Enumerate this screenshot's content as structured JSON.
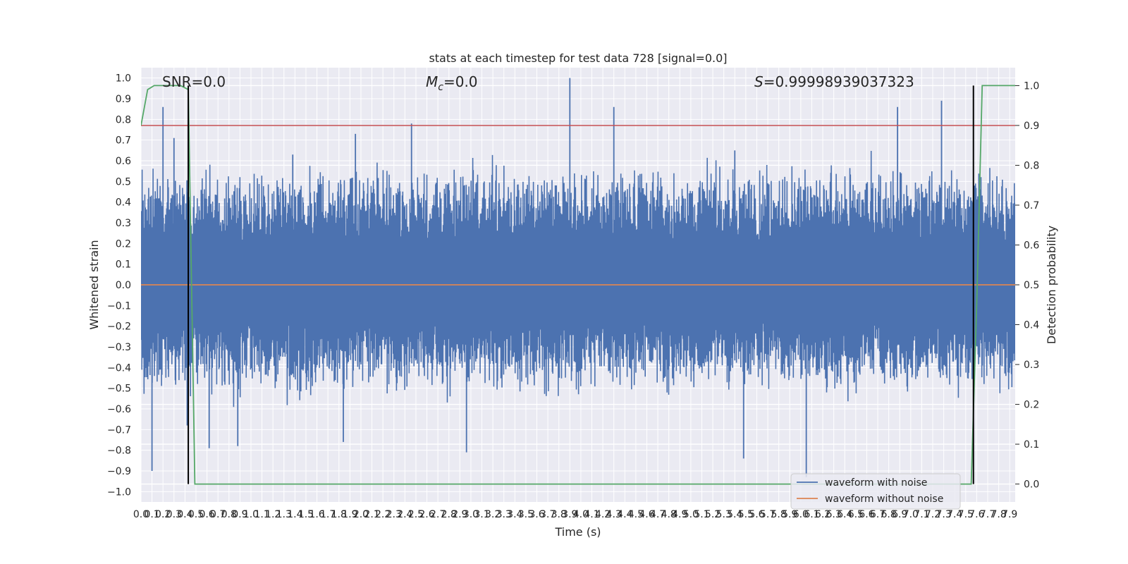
{
  "chart_data": {
    "type": "line",
    "title": "stats at each timestep for test data 728 [signal=0.0]",
    "xlabel": "Time (s)",
    "ylabel": "Whitened strain",
    "y2label": "Detection probability",
    "xlim": [
      0.0,
      7.95
    ],
    "ylim": [
      -1.05,
      1.05
    ],
    "y2lim": [
      -0.045,
      1.045
    ],
    "x_ticks": [
      0.0,
      0.1,
      0.2,
      0.3,
      0.4,
      0.5,
      0.6,
      0.7,
      0.8,
      0.9,
      1.0,
      1.1,
      1.2,
      1.3,
      1.4,
      1.5,
      1.6,
      1.7,
      1.8,
      1.9,
      2.0,
      2.1,
      2.2,
      2.3,
      2.4,
      2.5,
      2.6,
      2.7,
      2.8,
      2.9,
      3.0,
      3.1,
      3.2,
      3.3,
      3.4,
      3.5,
      3.6,
      3.7,
      3.8,
      3.9,
      4.0,
      4.1,
      4.2,
      4.3,
      4.4,
      4.5,
      4.6,
      4.7,
      4.8,
      4.9,
      5.0,
      5.1,
      5.2,
      5.3,
      5.4,
      5.5,
      5.6,
      5.7,
      5.8,
      5.9,
      6.0,
      6.1,
      6.2,
      6.3,
      6.4,
      6.5,
      6.6,
      6.7,
      6.8,
      6.9,
      7.0,
      7.1,
      7.2,
      7.3,
      7.4,
      7.5,
      7.6,
      7.7,
      7.8,
      7.9
    ],
    "x_tick_labels": [
      "0.0",
      "0.1",
      "0.2",
      "0.3",
      "0.4",
      "0.5",
      "0.6",
      "0.7",
      "0.8",
      "0.9",
      "1.0",
      "1.1",
      "1.2",
      "1.3",
      "1.4",
      "1.5",
      "1.6",
      "1.7",
      "1.8",
      "1.9",
      "2.0",
      "2.1",
      "2.2",
      "2.3",
      "2.4",
      "2.5",
      "2.6",
      "2.7",
      "2.8",
      "2.9",
      "3.0",
      "3.1",
      "3.2",
      "3.3",
      "3.4",
      "3.5",
      "3.6",
      "3.7",
      "3.8",
      "3.9",
      "4.0",
      "4.1",
      "4.2",
      "4.3",
      "4.4",
      "4.5",
      "4.6",
      "4.7",
      "4.8",
      "4.9",
      "5.0",
      "5.1",
      "5.2",
      "5.3",
      "5.4",
      "5.5",
      "5.6",
      "5.7",
      "5.8",
      "5.9",
      "6.0",
      "6.1",
      "6.2",
      "6.3",
      "6.4",
      "6.5",
      "6.6",
      "6.7",
      "6.8",
      "6.9",
      "7.0",
      "7.1",
      "7.2",
      "7.3",
      "7.4",
      "7.5",
      "7.6",
      "7.7",
      "7.8",
      "7.9"
    ],
    "y_ticks": [
      1.0,
      0.9,
      0.8,
      0.7,
      0.6,
      0.5,
      0.4,
      0.3,
      0.2,
      0.1,
      0.0,
      -0.1,
      -0.2,
      -0.3,
      -0.4,
      -0.5,
      -0.6,
      -0.7,
      -0.8,
      -0.9,
      -1.0
    ],
    "y_tick_labels": [
      "1.0",
      "0.9",
      "0.8",
      "0.7",
      "0.6",
      "0.5",
      "0.4",
      "0.3",
      "0.2",
      "0.1",
      "0.0",
      "−0.1",
      "−0.2",
      "−0.3",
      "−0.4",
      "−0.5",
      "−0.6",
      "−0.7",
      "−0.8",
      "−0.9",
      "−1.0"
    ],
    "y2_ticks": [
      1.0,
      0.9,
      0.8,
      0.7,
      0.6,
      0.5,
      0.4,
      0.3,
      0.2,
      0.1,
      0.0
    ],
    "y2_tick_labels": [
      "1.0",
      "0.9",
      "0.8",
      "0.7",
      "0.6",
      "0.5",
      "0.4",
      "0.3",
      "0.2",
      "0.1",
      "0.0"
    ],
    "annotations": {
      "snr": "SNR=0.0",
      "mc_symbol": "M",
      "mc_sub": "c",
      "mc_value": "=0.0",
      "s_symbol": "S",
      "s_value": "=0.99998939037323"
    },
    "legend": {
      "placement": "bottom-right",
      "entries": [
        "waveform with noise",
        "waveform without noise"
      ]
    },
    "series": [
      {
        "name": "waveform with noise",
        "color": "#4c72b0",
        "axis": "left",
        "description_x_range": [
          0.0,
          7.95
        ],
        "envelope_typical": [
          -0.45,
          0.5
        ],
        "spikes": [
          {
            "x": 0.1,
            "y": -0.9
          },
          {
            "x": 0.2,
            "y": 0.86
          },
          {
            "x": 0.3,
            "y": 0.71
          },
          {
            "x": 0.42,
            "y": -0.68
          },
          {
            "x": 0.62,
            "y": -0.79
          },
          {
            "x": 0.88,
            "y": -0.78
          },
          {
            "x": 1.38,
            "y": 0.63
          },
          {
            "x": 1.84,
            "y": -0.76
          },
          {
            "x": 1.95,
            "y": 0.73
          },
          {
            "x": 2.46,
            "y": 0.78
          },
          {
            "x": 2.96,
            "y": -0.81
          },
          {
            "x": 3.9,
            "y": 1.0
          },
          {
            "x": 4.3,
            "y": 0.86
          },
          {
            "x": 5.4,
            "y": 0.65
          },
          {
            "x": 5.48,
            "y": -0.84
          },
          {
            "x": 6.05,
            "y": -0.93
          },
          {
            "x": 6.88,
            "y": 0.86
          },
          {
            "x": 7.28,
            "y": 0.89
          }
        ]
      },
      {
        "name": "waveform without noise",
        "color": "#dd8452",
        "axis": "left",
        "x": [
          0.0,
          7.95
        ],
        "y": [
          0.0,
          0.0
        ]
      },
      {
        "color": "#55a868",
        "axis": "right",
        "x": [
          0.0,
          0.06,
          0.12,
          0.2,
          0.3,
          0.36,
          0.43,
          0.49,
          7.5,
          7.55,
          7.6,
          7.65,
          7.7,
          7.95
        ],
        "y": [
          0.9,
          0.99,
          1.0,
          1.0,
          1.0,
          1.0,
          0.99,
          0.0,
          0.0,
          0.0,
          0.45,
          1.0,
          1.0,
          1.0
        ]
      }
    ],
    "threshold_line": {
      "axis": "right",
      "y": 0.9,
      "color": "#c44e52"
    },
    "vertical_lines": [
      {
        "x": 0.43,
        "y2_range": [
          0.0,
          1.0
        ],
        "color": "#000000"
      },
      {
        "x": 7.57,
        "y2_range": [
          0.0,
          1.0
        ],
        "color": "#000000"
      }
    ]
  }
}
